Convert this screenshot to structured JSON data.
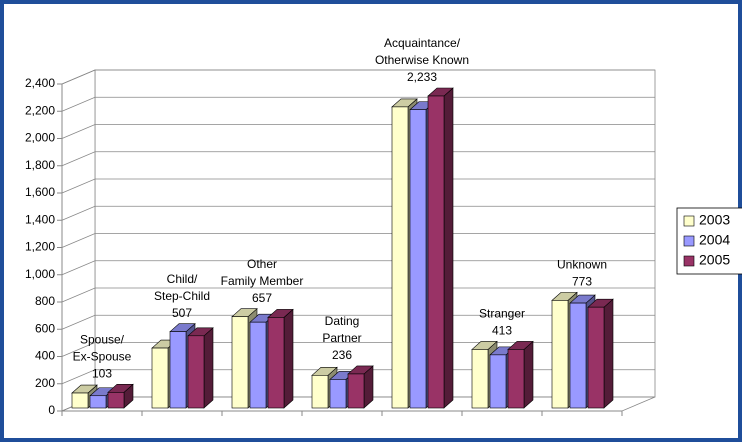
{
  "chart_data": {
    "type": "bar3d",
    "categories": [
      [
        "Spouse/",
        "Ex-Spouse"
      ],
      [
        "Child/",
        "Step-Child"
      ],
      [
        "Other",
        "Family Member"
      ],
      [
        "Dating",
        "Partner"
      ],
      [
        "Acquaintance/",
        "Otherwise Known"
      ],
      [
        "Stranger"
      ],
      [
        "Unknown"
      ]
    ],
    "category_values": [
      103,
      507,
      657,
      236,
      2233,
      413,
      773
    ],
    "category_value_labels": [
      "103",
      "507",
      "657",
      "236",
      "2,233",
      "413",
      "773"
    ],
    "series": [
      {
        "name": "2003",
        "color": "#ffffcc",
        "values": [
          110,
          440,
          670,
          240,
          2210,
          430,
          790
        ]
      },
      {
        "name": "2004",
        "color": "#9999ff",
        "values": [
          90,
          560,
          630,
          210,
          2190,
          390,
          770
        ]
      },
      {
        "name": "2005",
        "color": "#993366",
        "values": [
          115,
          530,
          665,
          250,
          2290,
          430,
          740
        ]
      }
    ],
    "ylim": [
      0,
      2400
    ],
    "yticks": [
      0,
      200,
      400,
      600,
      800,
      {
        "value": 1000,
        "label": "1,000"
      },
      {
        "value": 1200,
        "label": "1,200"
      },
      {
        "value": 1400,
        "label": "1,400"
      },
      {
        "value": 1600,
        "label": "1,600"
      },
      {
        "value": 1800,
        "label": "1,800"
      },
      {
        "value": 2000,
        "label": "2,000"
      },
      {
        "value": 2200,
        "label": "2,200"
      },
      {
        "value": 2400,
        "label": "2,400"
      }
    ],
    "grid": true,
    "legend": "right"
  }
}
